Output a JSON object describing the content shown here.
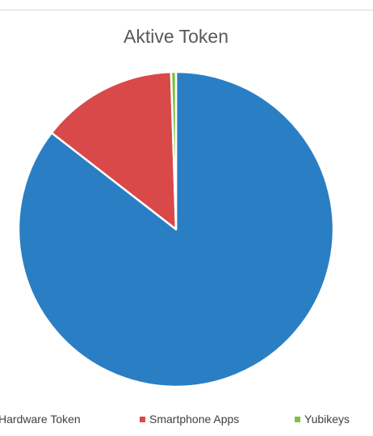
{
  "chart_data": {
    "type": "pie",
    "title": "Aktive Token",
    "categories": [
      "Hardware Token",
      "Smartphone Apps",
      "Yubikeys"
    ],
    "values": [
      85.5,
      14.0,
      0.5
    ],
    "colors": [
      "#2a7ec4",
      "#d9494a",
      "#7ec141"
    ],
    "legend_position": "bottom"
  }
}
